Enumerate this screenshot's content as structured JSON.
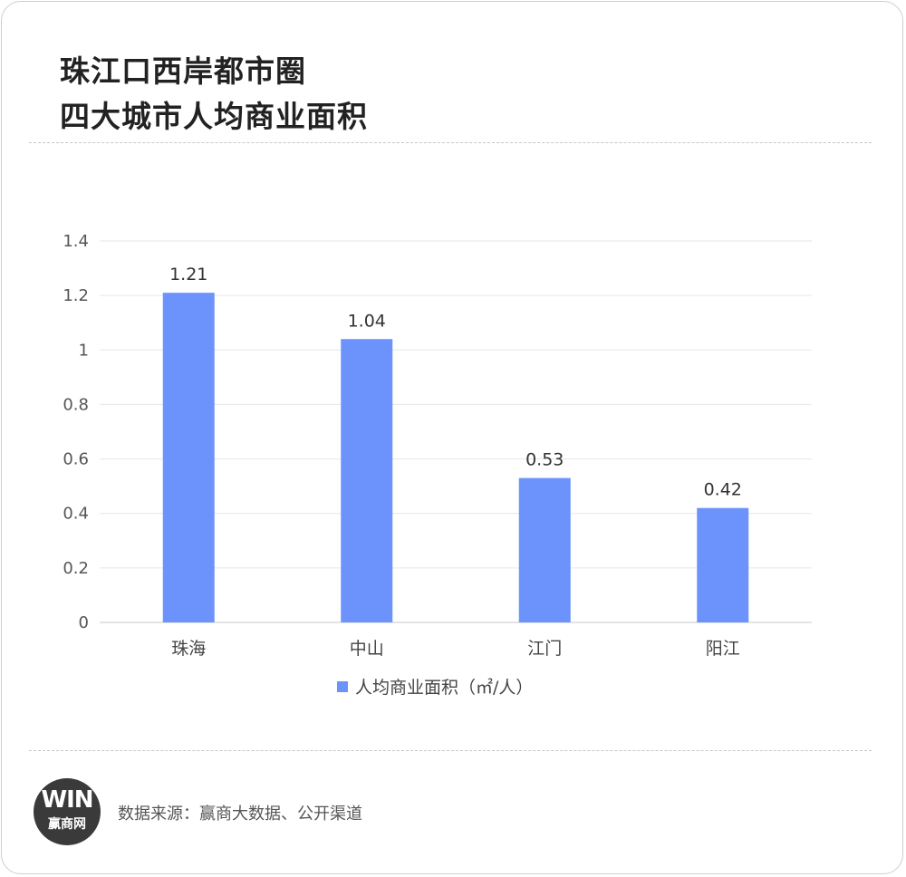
{
  "title_lines": [
    "珠江口西岸都市圈",
    "四大城市人均商业面积"
  ],
  "chart_data": {
    "type": "bar",
    "categories": [
      "珠海",
      "中山",
      "江门",
      "阳江"
    ],
    "series": [
      {
        "name": "人均商业面积（㎡/人）",
        "values": [
          1.21,
          1.04,
          0.53,
          0.42
        ],
        "color": "#6b93fb"
      }
    ],
    "data_labels": [
      "1.21",
      "1.04",
      "0.53",
      "0.42"
    ],
    "y_ticks": [
      "0",
      "0.2",
      "0.4",
      "0.6",
      "0.8",
      "1",
      "1.2",
      "1.4"
    ],
    "ylim": [
      0,
      1.4
    ],
    "grid": true,
    "legend_position": "bottom"
  },
  "footer": {
    "logo_mark": "WIN",
    "logo_text": "赢商网",
    "source": "数据来源：赢商大数据、公开渠道"
  }
}
